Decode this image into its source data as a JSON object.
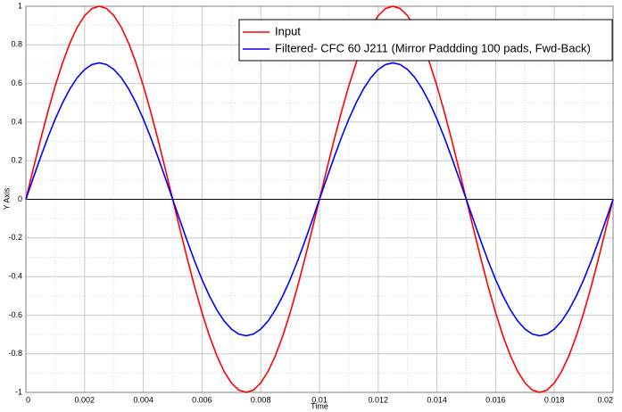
{
  "chart_data": {
    "type": "line",
    "x_label": "Time",
    "y_label": "Y Axis",
    "xlim": [
      0,
      0.02
    ],
    "ylim": [
      -1,
      1
    ],
    "xticks": [
      0,
      0.002,
      0.004,
      0.006,
      0.008,
      0.01,
      0.012,
      0.014,
      0.016,
      0.018,
      0.02
    ],
    "yticks": [
      -1,
      -0.8,
      -0.6,
      -0.4,
      -0.2,
      0,
      0.2,
      0.4,
      0.6,
      0.8,
      1
    ],
    "grid": true,
    "legend": "upper right",
    "x": [
      0,
      0.00025,
      0.0005,
      0.00075,
      0.001,
      0.00125,
      0.0015,
      0.00175,
      0.002,
      0.00225,
      0.0025,
      0.00275,
      0.003,
      0.00325,
      0.0035,
      0.00375,
      0.004,
      0.00425,
      0.0045,
      0.00475,
      0.005,
      0.00525,
      0.0055,
      0.00575,
      0.006,
      0.00625,
      0.0065,
      0.00675,
      0.007,
      0.00725,
      0.0075,
      0.00775,
      0.008,
      0.00825,
      0.0085,
      0.00875,
      0.009,
      0.00925,
      0.0095,
      0.00975,
      0.01,
      0.01025,
      0.0105,
      0.01075,
      0.011,
      0.01125,
      0.0115,
      0.01175,
      0.012,
      0.01225,
      0.0125,
      0.01275,
      0.013,
      0.01325,
      0.0135,
      0.01375,
      0.014,
      0.01425,
      0.0145,
      0.01475,
      0.015,
      0.01525,
      0.0155,
      0.01575,
      0.016,
      0.01625,
      0.0165,
      0.01675,
      0.017,
      0.01725,
      0.0175,
      0.01775,
      0.018,
      0.01825,
      0.0185,
      0.01875,
      0.019,
      0.01925,
      0.0195,
      0.01975,
      0.02
    ],
    "series": [
      {
        "name": "Input",
        "color": "#ff0000",
        "values": [
          0,
          0.156,
          0.309,
          0.454,
          0.588,
          0.707,
          0.809,
          0.891,
          0.951,
          0.988,
          1,
          0.988,
          0.951,
          0.891,
          0.809,
          0.707,
          0.588,
          0.454,
          0.309,
          0.156,
          0,
          -0.156,
          -0.309,
          -0.454,
          -0.588,
          -0.707,
          -0.809,
          -0.891,
          -0.951,
          -0.988,
          -1,
          -0.988,
          -0.951,
          -0.891,
          -0.809,
          -0.707,
          -0.588,
          -0.454,
          -0.309,
          -0.156,
          0,
          0.156,
          0.309,
          0.454,
          0.588,
          0.707,
          0.809,
          0.891,
          0.951,
          0.988,
          1,
          0.988,
          0.951,
          0.891,
          0.809,
          0.707,
          0.588,
          0.454,
          0.309,
          0.156,
          0,
          -0.156,
          -0.309,
          -0.454,
          -0.588,
          -0.707,
          -0.809,
          -0.891,
          -0.951,
          -0.988,
          -1,
          -0.988,
          -0.951,
          -0.891,
          -0.809,
          -0.707,
          -0.588,
          -0.454,
          -0.309,
          -0.156,
          0
        ]
      },
      {
        "name": "Filtered- CFC 60 J211 (Mirror Paddding 100 pads, Fwd-Back)",
        "color": "#0000ff",
        "values": [
          0,
          0.11,
          0.218,
          0.321,
          0.416,
          0.5,
          0.572,
          0.63,
          0.672,
          0.698,
          0.707,
          0.698,
          0.672,
          0.63,
          0.572,
          0.5,
          0.416,
          0.321,
          0.218,
          0.11,
          0,
          -0.11,
          -0.218,
          -0.321,
          -0.416,
          -0.5,
          -0.572,
          -0.63,
          -0.672,
          -0.698,
          -0.707,
          -0.698,
          -0.672,
          -0.63,
          -0.572,
          -0.5,
          -0.416,
          -0.321,
          -0.218,
          -0.11,
          0,
          0.11,
          0.218,
          0.321,
          0.416,
          0.5,
          0.572,
          0.63,
          0.672,
          0.698,
          0.707,
          0.698,
          0.672,
          0.63,
          0.572,
          0.5,
          0.416,
          0.321,
          0.218,
          0.11,
          0,
          -0.11,
          -0.218,
          -0.321,
          -0.416,
          -0.5,
          -0.572,
          -0.63,
          -0.672,
          -0.698,
          -0.707,
          -0.698,
          -0.672,
          -0.63,
          -0.572,
          -0.5,
          -0.416,
          -0.321,
          -0.218,
          -0.11,
          0
        ]
      }
    ]
  }
}
